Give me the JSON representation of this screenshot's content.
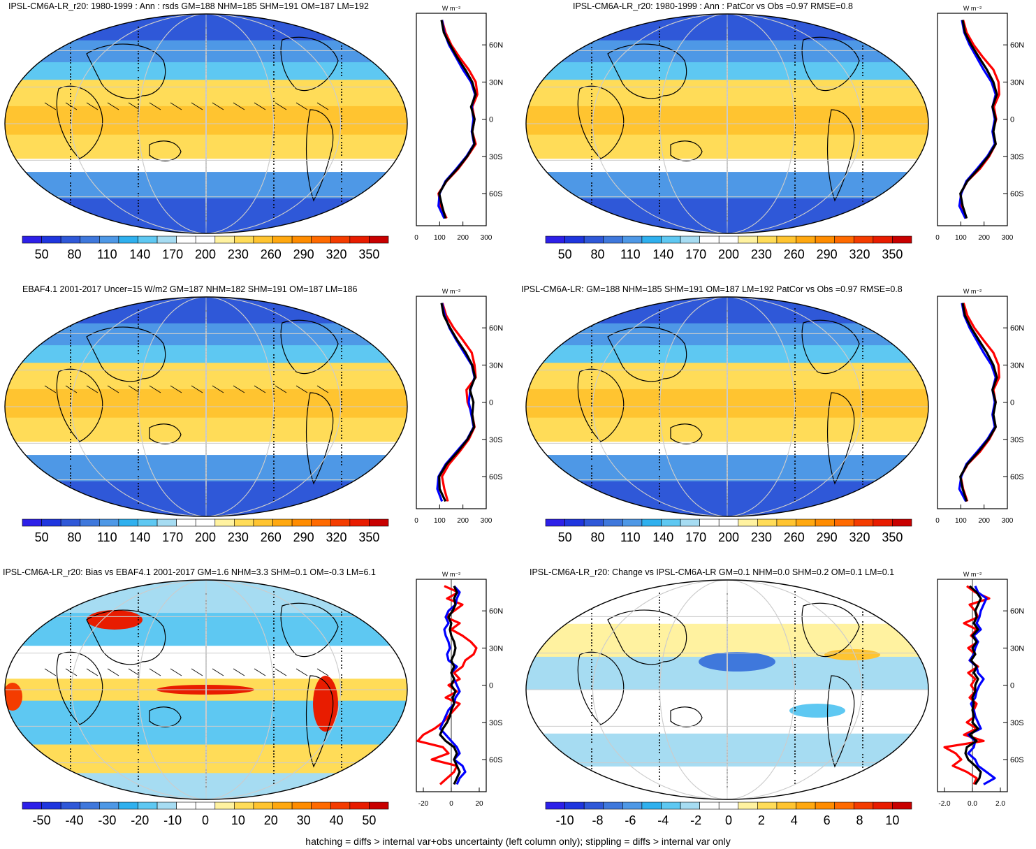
{
  "footer": "hatching = diffs > internal var+obs uncertainty (left column only); stippling = diffs > internal var only",
  "colors": {
    "scale": [
      "#2d20e8",
      "#1f36de",
      "#2f58d8",
      "#3f78dc",
      "#4e98e6",
      "#2fb0ee",
      "#5ec8f2",
      "#a6dcf2",
      "#ffffff",
      "#ffffff",
      "#fff2a0",
      "#ffdc58",
      "#ffc430",
      "#ffa810",
      "#ff8c00",
      "#ff6a00",
      "#f43c00",
      "#e81c00",
      "#c80000"
    ],
    "red": "#ff0000",
    "blue": "#0000ff",
    "black": "#000000"
  },
  "panels": [
    {
      "title": "IPSL-CM6A-LR_r20: 1980-1999 : Ann : rsds GM=188 NHM=185 SHM=191 OM=187 LM=192",
      "colorbar_labels": [
        "50",
        "80",
        "110",
        "140",
        "170",
        "200",
        "230",
        "260",
        "290",
        "320",
        "350"
      ],
      "profile": {
        "xlim": [
          0,
          300
        ],
        "xticks": [
          "0",
          "100",
          "200",
          "300"
        ],
        "xtick_values": [
          0,
          100,
          200,
          300
        ],
        "lat_labels": [
          "60N",
          "30N",
          "0",
          "30S",
          "60S"
        ],
        "units": "W m⁻²",
        "lat": [
          80,
          70,
          60,
          50,
          40,
          30,
          20,
          10,
          0,
          -10,
          -20,
          -30,
          -40,
          -50,
          -60,
          -70,
          -80
        ],
        "red": [
          110,
          125,
          150,
          185,
          225,
          255,
          262,
          240,
          250,
          240,
          255,
          220,
          180,
          130,
          95,
          105,
          130
        ],
        "blue": [
          110,
          120,
          140,
          170,
          200,
          235,
          252,
          238,
          245,
          238,
          248,
          215,
          172,
          125,
          100,
          95,
          120
        ],
        "black": [
          108,
          118,
          145,
          175,
          210,
          240,
          255,
          235,
          250,
          240,
          250,
          218,
          176,
          128,
          98,
          110,
          125
        ]
      }
    },
    {
      "title": "IPSL-CM6A-LR_r20: 1980-1999 : Ann : PatCor vs Obs =0.97 RMSE=0.8",
      "colorbar_labels": [
        "50",
        "80",
        "110",
        "140",
        "170",
        "200",
        "230",
        "260",
        "290",
        "320",
        "350"
      ],
      "profile": {
        "xlim": [
          0,
          300
        ],
        "xticks": [
          "0",
          "100",
          "200",
          "300"
        ],
        "xtick_values": [
          0,
          100,
          200,
          300
        ],
        "lat_labels": [
          "60N",
          "30N",
          "0",
          "30S",
          "60S"
        ],
        "units": "W m⁻²",
        "lat": [
          80,
          70,
          60,
          50,
          40,
          30,
          20,
          10,
          0,
          -10,
          -20,
          -30,
          -40,
          -50,
          -60,
          -70,
          -80
        ],
        "red": [
          110,
          125,
          155,
          195,
          240,
          262,
          265,
          242,
          252,
          238,
          250,
          222,
          182,
          128,
          100,
          100,
          125
        ],
        "blue": [
          105,
          115,
          138,
          168,
          198,
          232,
          250,
          236,
          246,
          236,
          246,
          214,
          170,
          124,
          102,
          94,
          120
        ],
        "black": [
          108,
          118,
          145,
          178,
          212,
          240,
          255,
          236,
          250,
          240,
          250,
          218,
          176,
          128,
          98,
          108,
          125
        ]
      }
    },
    {
      "title": "EBAF4.1 2001-2017 Uncer=15 W/m2 GM=187 NHM=182 SHM=191 OM=187 LM=186",
      "colorbar_labels": [
        "50",
        "80",
        "110",
        "140",
        "170",
        "200",
        "230",
        "260",
        "290",
        "320",
        "350"
      ],
      "profile": {
        "xlim": [
          0,
          300
        ],
        "xticks": [
          "0",
          "100",
          "200",
          "300"
        ],
        "xtick_values": [
          0,
          100,
          200,
          300
        ],
        "lat_labels": [
          "60N",
          "30N",
          "0",
          "30S",
          "60S"
        ],
        "units": "W m⁻²",
        "lat": [
          80,
          70,
          60,
          50,
          40,
          30,
          20,
          10,
          0,
          -10,
          -20,
          -30,
          -40,
          -50,
          -60,
          -70,
          -80
        ],
        "red": [
          112,
          128,
          160,
          200,
          238,
          250,
          255,
          215,
          220,
          240,
          250,
          225,
          185,
          140,
          110,
          120,
          135
        ],
        "blue": [
          110,
          122,
          142,
          172,
          205,
          238,
          250,
          232,
          225,
          236,
          246,
          218,
          172,
          126,
          95,
          90,
          110
        ],
        "black": [
          108,
          118,
          145,
          176,
          212,
          240,
          252,
          230,
          245,
          240,
          248,
          220,
          178,
          130,
          98,
          100,
          125
        ]
      }
    },
    {
      "title": "IPSL-CM6A-LR: GM=188 NHM=185 SHM=191 OM=187 LM=192 PatCor vs Obs =0.97 RMSE=0.8",
      "colorbar_labels": [
        "50",
        "80",
        "110",
        "140",
        "170",
        "200",
        "230",
        "260",
        "290",
        "320",
        "350"
      ],
      "profile": {
        "xlim": [
          0,
          300
        ],
        "xticks": [
          "0",
          "100",
          "200",
          "300"
        ],
        "xtick_values": [
          0,
          100,
          200,
          300
        ],
        "lat_labels": [
          "60N",
          "30N",
          "0",
          "30S",
          "60S"
        ],
        "units": "W m⁻²",
        "lat": [
          80,
          70,
          60,
          50,
          40,
          30,
          20,
          10,
          0,
          -10,
          -20,
          -30,
          -40,
          -50,
          -60,
          -70,
          -80
        ],
        "red": [
          112,
          128,
          158,
          198,
          240,
          262,
          265,
          240,
          250,
          238,
          250,
          222,
          182,
          130,
          100,
          110,
          128
        ],
        "blue": [
          105,
          115,
          138,
          168,
          198,
          232,
          250,
          236,
          246,
          236,
          246,
          214,
          170,
          124,
          102,
          94,
          122
        ],
        "black": [
          108,
          118,
          145,
          178,
          212,
          240,
          255,
          236,
          250,
          240,
          250,
          218,
          176,
          128,
          98,
          108,
          125
        ]
      }
    },
    {
      "title": "IPSL-CM6A-LR_r20: Bias vs EBAF4.1 2001-2017 GM=1.6 NHM=3.3 SHM=0.1 OM=-0.3 LM=6.1",
      "colorbar_labels": [
        "-50",
        "-40",
        "-30",
        "-20",
        "-10",
        "0",
        "10",
        "20",
        "30",
        "40",
        "50"
      ],
      "profile": {
        "xlim": [
          -25,
          25
        ],
        "xticks": [
          "-20",
          "0",
          "20"
        ],
        "xtick_values": [
          -20,
          0,
          20
        ],
        "lat_labels": [
          "60N",
          "30N",
          "0",
          "30S",
          "60S"
        ],
        "units": "W m⁻²",
        "lat": [
          80,
          75,
          70,
          65,
          60,
          55,
          50,
          45,
          40,
          35,
          30,
          25,
          20,
          15,
          10,
          5,
          0,
          -5,
          -10,
          -15,
          -20,
          -25,
          -30,
          -35,
          -40,
          -45,
          -50,
          -55,
          -60,
          -65,
          -70,
          -75,
          -80
        ],
        "red": [
          -5,
          5,
          -3,
          8,
          2,
          -4,
          6,
          0,
          8,
          14,
          18,
          16,
          10,
          8,
          2,
          6,
          -2,
          4,
          -4,
          6,
          2,
          -2,
          -6,
          -12,
          -20,
          -24,
          -6,
          -2,
          -14,
          4,
          2,
          -3,
          -8
        ],
        "blue": [
          2,
          6,
          4,
          3,
          -2,
          -4,
          -2,
          -5,
          -4,
          -2,
          -1,
          -3,
          -2,
          4,
          0,
          2,
          4,
          6,
          3,
          2,
          -2,
          -4,
          -6,
          -8,
          -4,
          0,
          4,
          6,
          2,
          8,
          10,
          6,
          4
        ],
        "black": [
          2,
          4,
          2,
          3,
          1,
          -2,
          0,
          -1,
          0,
          2,
          3,
          2,
          0,
          2,
          0,
          2,
          0,
          3,
          1,
          2,
          0,
          -1,
          -3,
          -6,
          -8,
          -4,
          2,
          4,
          2,
          4,
          6,
          4,
          2
        ]
      }
    },
    {
      "title": "IPSL-CM6A-LR_r20: Change vs IPSL-CM6A-LR GM=0.1 NHM=0.0 SHM=0.2 OM=0.1 LM=0.1",
      "colorbar_labels": [
        "-10",
        "-8",
        "-6",
        "-4",
        "-2",
        "0",
        "2",
        "4",
        "6",
        "8",
        "10"
      ],
      "profile": {
        "xlim": [
          -2.5,
          2.5
        ],
        "xticks": [
          "-2.0",
          "0.0",
          "2.0"
        ],
        "xtick_values": [
          -2,
          0,
          2
        ],
        "lat_labels": [
          "60N",
          "30N",
          "0",
          "30S",
          "60S"
        ],
        "units": "W m⁻²",
        "lat": [
          80,
          75,
          70,
          65,
          60,
          55,
          50,
          45,
          40,
          35,
          30,
          25,
          20,
          15,
          10,
          5,
          0,
          -5,
          -10,
          -15,
          -20,
          -25,
          -30,
          -35,
          -40,
          -45,
          -50,
          -55,
          -60,
          -65,
          -70,
          -75,
          -80
        ],
        "red": [
          -0.4,
          0.2,
          1.2,
          -0.2,
          0.2,
          0.4,
          -0.6,
          0.3,
          -0.1,
          0.4,
          -0.3,
          0.2,
          -0.2,
          0.4,
          -0.3,
          0.2,
          -0.1,
          0.2,
          -0.2,
          0.3,
          0.1,
          0.2,
          -0.4,
          0.3,
          -0.6,
          0.8,
          -2.0,
          -1.2,
          -0.8,
          -1.4,
          -0.4,
          0.3,
          0.1
        ],
        "blue": [
          0.2,
          0.4,
          1.0,
          0.8,
          0.6,
          0.5,
          0.3,
          0.6,
          0.1,
          0.4,
          0.2,
          0.1,
          -0.2,
          0.3,
          0.4,
          0.8,
          0.5,
          0.3,
          0.2,
          -0.1,
          0.1,
          0.2,
          0.4,
          0.6,
          -0.3,
          0.2,
          0.1,
          -0.3,
          0.2,
          0.4,
          1.0,
          1.6,
          0.8
        ],
        "black": [
          -0.2,
          0.3,
          0.6,
          0.4,
          0.2,
          0.3,
          0.1,
          0.4,
          0.0,
          0.3,
          0.0,
          0.2,
          -0.1,
          0.3,
          0.1,
          0.4,
          0.2,
          0.2,
          0.0,
          0.1,
          0.0,
          0.1,
          0.0,
          0.4,
          -0.2,
          0.3,
          -0.4,
          -0.5,
          -0.3,
          0.2,
          0.6,
          0.5,
          0.2
        ]
      }
    }
  ]
}
